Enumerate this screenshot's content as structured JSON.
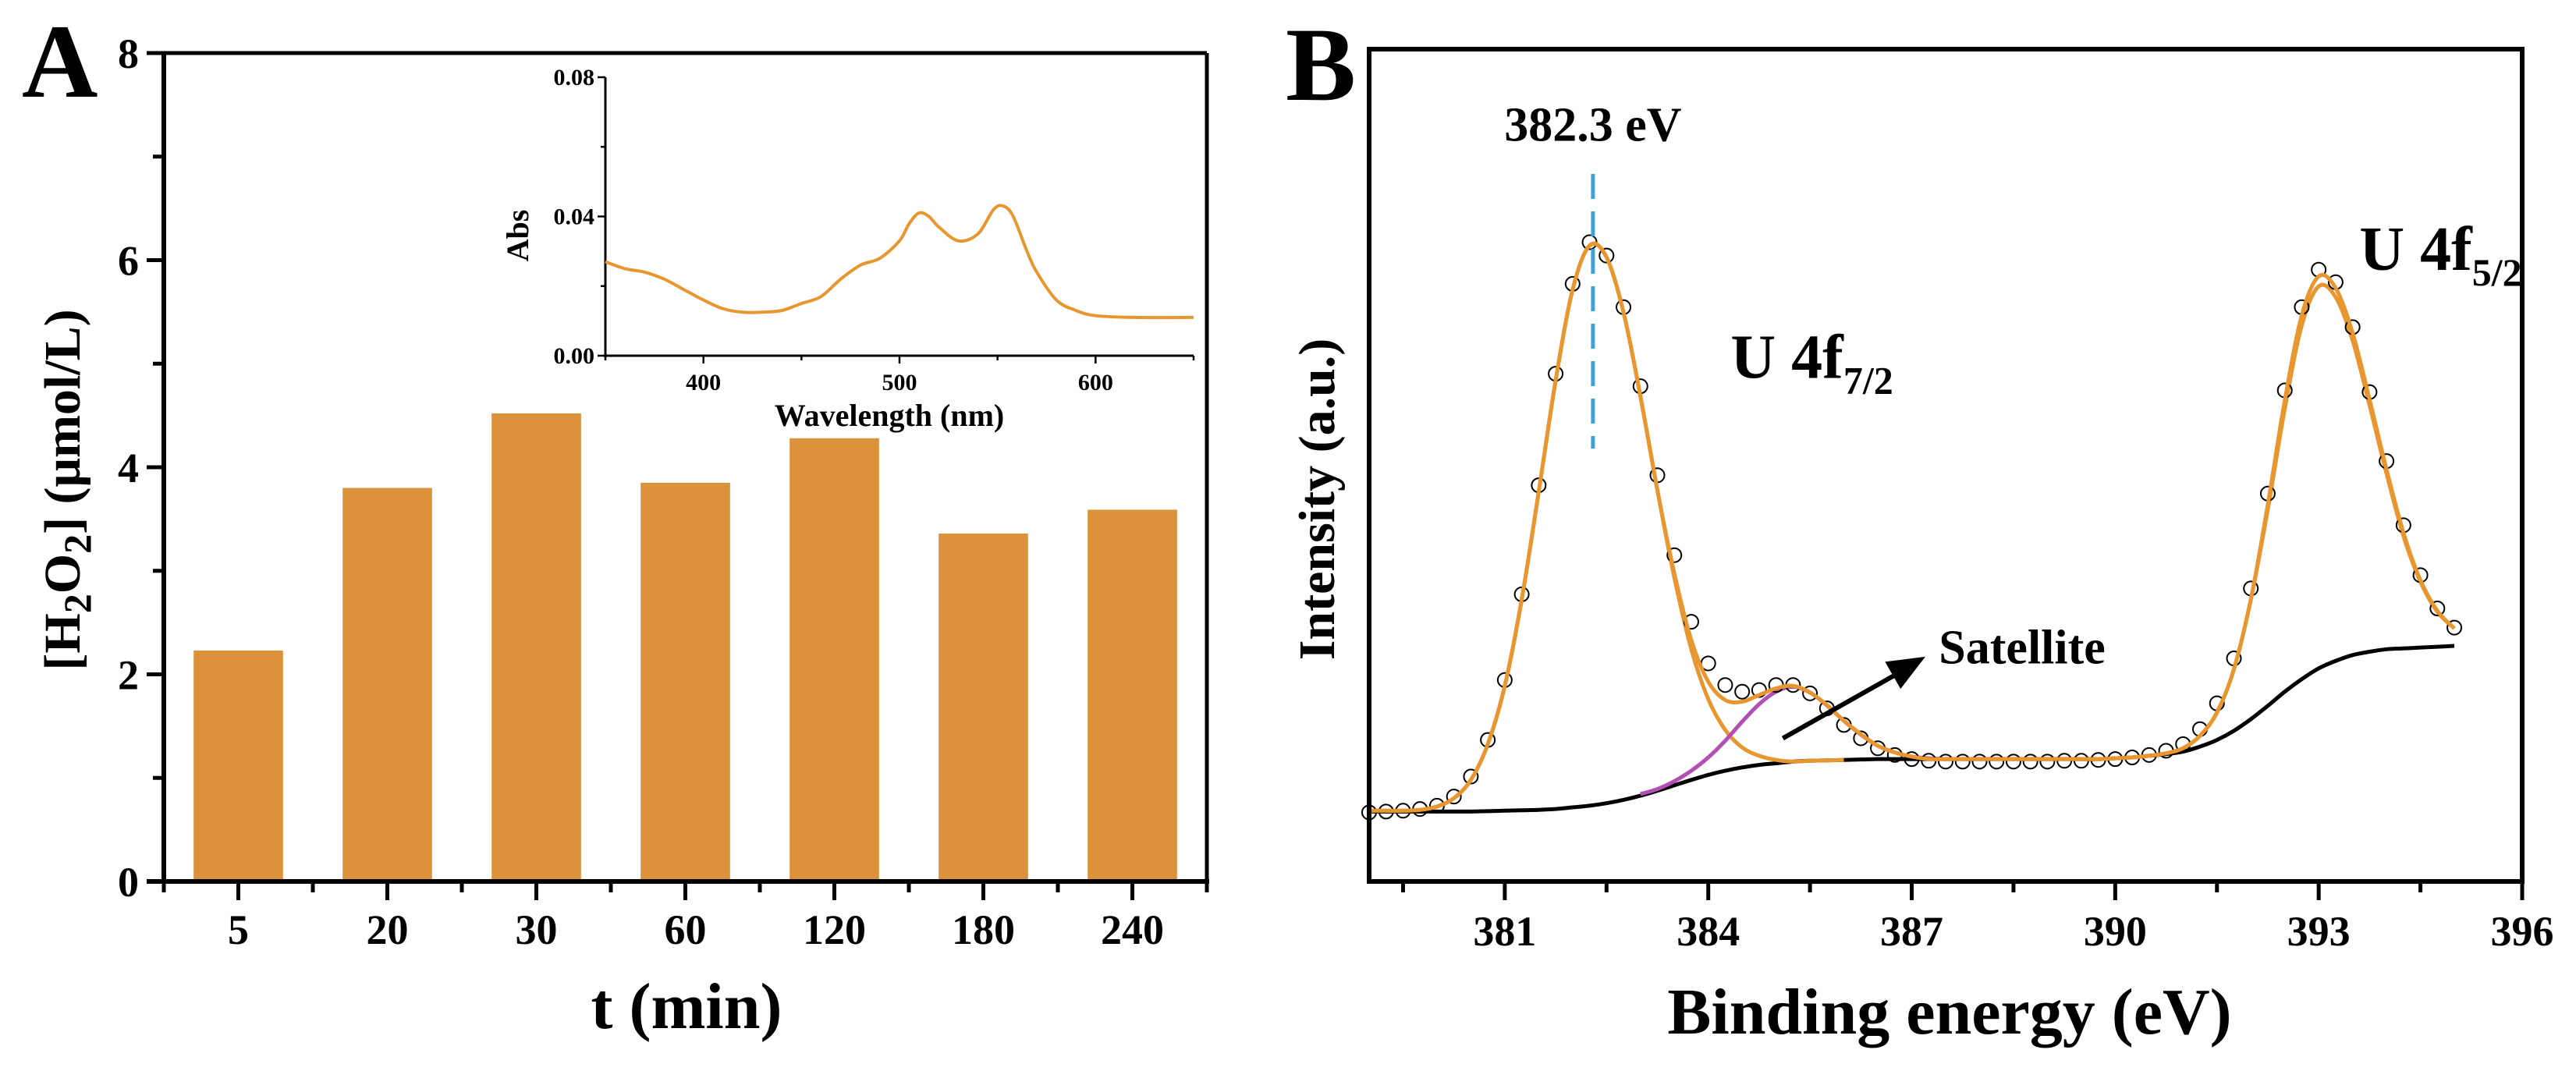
{
  "chart_data": [
    {
      "panel_label": "A",
      "type": "bar",
      "categories": [
        "5",
        "20",
        "30",
        "60",
        "120",
        "180",
        "240"
      ],
      "values": [
        2.23,
        3.8,
        4.52,
        3.85,
        4.28,
        3.36,
        3.59
      ],
      "xlabel": "t (min)",
      "ylabel_parts": [
        "[H",
        "2",
        "O",
        "2",
        "] (μmol/L)"
      ],
      "ylim": [
        0,
        8
      ],
      "yticks": [
        0,
        2,
        4,
        6,
        8
      ],
      "ytick_labels": [
        "0",
        "2",
        "4",
        "6",
        "8"
      ],
      "grid": false,
      "color": "#DB923A",
      "inset": {
        "type": "line",
        "xlabel": "Wavelength (nm)",
        "ylabel": "Abs",
        "xlim": [
          350,
          650
        ],
        "ylim": [
          0,
          0.08
        ],
        "xticks": [
          400,
          500,
          600
        ],
        "xtick_labels": [
          "400",
          "500",
          "600"
        ],
        "yticks": [
          0,
          0.04,
          0.08
        ],
        "ytick_labels": [
          "0.00",
          "0.04",
          "0.08"
        ],
        "color": "#E8962F",
        "x": [
          350,
          360,
          370,
          380,
          390,
          400,
          410,
          420,
          430,
          440,
          450,
          460,
          470,
          480,
          490,
          500,
          505,
          510,
          515,
          520,
          530,
          540,
          548,
          553,
          558,
          565,
          570,
          580,
          590,
          600,
          620,
          650
        ],
        "y": [
          0.027,
          0.025,
          0.024,
          0.022,
          0.019,
          0.016,
          0.0135,
          0.0125,
          0.0125,
          0.013,
          0.015,
          0.017,
          0.022,
          0.026,
          0.028,
          0.033,
          0.038,
          0.041,
          0.04,
          0.037,
          0.033,
          0.035,
          0.042,
          0.043,
          0.04,
          0.03,
          0.024,
          0.016,
          0.013,
          0.0115,
          0.011,
          0.011
        ]
      }
    },
    {
      "panel_label": "B",
      "type": "line",
      "xlabel": "Binding energy (eV)",
      "ylabel": "Intensity (a.u.)",
      "xlim": [
        379,
        396
      ],
      "ylim": [
        0,
        1
      ],
      "xticks": [
        381,
        384,
        387,
        390,
        393,
        396
      ],
      "xtick_labels": [
        "381",
        "384",
        "387",
        "390",
        "393",
        "396"
      ],
      "grid": false,
      "x": [
        379,
        379.25,
        379.5,
        379.75,
        380,
        380.25,
        380.5,
        380.75,
        381,
        381.25,
        381.5,
        381.75,
        382,
        382.25,
        382.5,
        382.75,
        383,
        383.25,
        383.5,
        383.75,
        384,
        384.25,
        384.5,
        384.75,
        385,
        385.25,
        385.5,
        385.75,
        386,
        386.25,
        386.5,
        386.75,
        387,
        387.25,
        387.5,
        387.75,
        388,
        388.25,
        388.5,
        388.75,
        389,
        389.25,
        389.5,
        389.75,
        390,
        390.25,
        390.5,
        390.75,
        391,
        391.25,
        391.5,
        391.75,
        392,
        392.25,
        392.5,
        392.75,
        393,
        393.25,
        393.5,
        393.75,
        394,
        394.25,
        394.5,
        394.75,
        395
      ],
      "series": [
        {
          "name": "raw data",
          "style": "open-circles",
          "color": "#000000",
          "y": [
            0.083,
            0.084,
            0.085,
            0.087,
            0.091,
            0.102,
            0.126,
            0.17,
            0.242,
            0.345,
            0.476,
            0.61,
            0.718,
            0.768,
            0.752,
            0.69,
            0.595,
            0.488,
            0.392,
            0.312,
            0.262,
            0.236,
            0.228,
            0.23,
            0.236,
            0.236,
            0.226,
            0.208,
            0.188,
            0.172,
            0.16,
            0.152,
            0.147,
            0.145,
            0.144,
            0.144,
            0.144,
            0.144,
            0.144,
            0.144,
            0.144,
            0.145,
            0.145,
            0.146,
            0.147,
            0.149,
            0.152,
            0.157,
            0.165,
            0.183,
            0.214,
            0.268,
            0.352,
            0.466,
            0.59,
            0.69,
            0.735,
            0.72,
            0.666,
            0.588,
            0.505,
            0.428,
            0.368,
            0.328,
            0.305
          ]
        },
        {
          "name": "envelope",
          "style": "line",
          "color": "#E8962F",
          "y": [
            0.085,
            0.085,
            0.085,
            0.086,
            0.09,
            0.1,
            0.122,
            0.165,
            0.235,
            0.339,
            0.468,
            0.602,
            0.711,
            0.764,
            0.75,
            0.684,
            0.583,
            0.47,
            0.37,
            0.29,
            0.24,
            0.218,
            0.216,
            0.224,
            0.232,
            0.235,
            0.227,
            0.212,
            0.193,
            0.177,
            0.163,
            0.155,
            0.15,
            0.147,
            0.147,
            0.147,
            0.147,
            0.147,
            0.147,
            0.147,
            0.147,
            0.147,
            0.147,
            0.147,
            0.148,
            0.149,
            0.151,
            0.154,
            0.16,
            0.175,
            0.203,
            0.255,
            0.339,
            0.453,
            0.578,
            0.68,
            0.727,
            0.713,
            0.659,
            0.579,
            0.495,
            0.419,
            0.362,
            0.325,
            0.304
          ]
        },
        {
          "name": "background",
          "style": "line",
          "color": "#000000",
          "y": [
            0.084,
            0.084,
            0.084,
            0.084,
            0.084,
            0.084,
            0.084,
            0.0845,
            0.085,
            0.0855,
            0.086,
            0.087,
            0.089,
            0.091,
            0.094,
            0.098,
            0.103,
            0.109,
            0.1155,
            0.122,
            0.128,
            0.133,
            0.137,
            0.14,
            0.142,
            0.144,
            0.145,
            0.1455,
            0.146,
            0.1465,
            0.147,
            0.147,
            0.147,
            0.147,
            0.147,
            0.147,
            0.147,
            0.147,
            0.147,
            0.147,
            0.147,
            0.147,
            0.147,
            0.147,
            0.148,
            0.149,
            0.151,
            0.153,
            0.156,
            0.162,
            0.17,
            0.181,
            0.195,
            0.211,
            0.228,
            0.243,
            0.256,
            0.265,
            0.272,
            0.276,
            0.279,
            0.28,
            0.281,
            0.282,
            0.283
          ]
        }
      ],
      "components": [
        {
          "name": "U 4f7/2 fit",
          "color": "#E8962F",
          "x": [
            379,
            379.25,
            379.5,
            379.75,
            380,
            380.25,
            380.5,
            380.75,
            381,
            381.25,
            381.5,
            381.75,
            382,
            382.25,
            382.5,
            382.75,
            383,
            383.25,
            383.5,
            383.75,
            384,
            384.25,
            384.5,
            384.75,
            385,
            385.25,
            385.5,
            385.75,
            386
          ],
          "y": [
            0.085,
            0.085,
            0.085,
            0.086,
            0.09,
            0.1,
            0.122,
            0.165,
            0.235,
            0.339,
            0.468,
            0.602,
            0.711,
            0.764,
            0.75,
            0.684,
            0.583,
            0.47,
            0.365,
            0.279,
            0.219,
            0.182,
            0.161,
            0.151,
            0.146,
            0.144,
            0.145,
            0.1455,
            0.146
          ]
        },
        {
          "name": "satellite fit",
          "color": "#B24FB4",
          "x": [
            383,
            383.25,
            383.5,
            383.75,
            384,
            384.25,
            384.5,
            384.75,
            385,
            385.25,
            385.5,
            385.75,
            386,
            386.25,
            386.5,
            386.75,
            387,
            387.25,
            387.5
          ],
          "y": [
            0.105,
            0.111,
            0.1205,
            0.133,
            0.149,
            0.169,
            0.192,
            0.213,
            0.228,
            0.234,
            0.227,
            0.2115,
            0.193,
            0.1765,
            0.163,
            0.155,
            0.15,
            0.148,
            0.147
          ]
        },
        {
          "name": "U 4f5/2 fit",
          "color": "#E8962F",
          "x": [
            389.5,
            389.75,
            390,
            390.25,
            390.5,
            390.75,
            391,
            391.25,
            391.5,
            391.75,
            392,
            392.25,
            392.5,
            392.75,
            393,
            393.25,
            393.5,
            393.75,
            394,
            394.25,
            394.5,
            394.75,
            395
          ],
          "y": [
            0.147,
            0.147,
            0.148,
            0.149,
            0.151,
            0.154,
            0.16,
            0.175,
            0.203,
            0.255,
            0.339,
            0.447,
            0.568,
            0.668,
            0.715,
            0.702,
            0.65,
            0.572,
            0.49,
            0.415,
            0.36,
            0.324,
            0.304
          ]
        }
      ],
      "annotations": {
        "peak_position": {
          "text": "382.3 eV",
          "x": 382.3,
          "line_color": "#3BA4D2"
        },
        "peak1": {
          "main": "U 4f",
          "sub": "7/2"
        },
        "peak2": {
          "main": "U 4f",
          "sub": "5/2"
        },
        "satellite": {
          "text": "Satellite"
        }
      }
    }
  ]
}
